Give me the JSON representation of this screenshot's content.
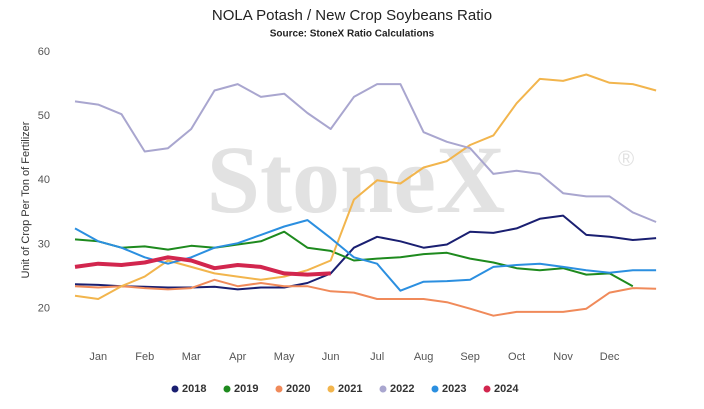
{
  "chart_data": {
    "type": "line",
    "title": "NOLA Potash / New Crop Soybeans Ratio",
    "subtitle": "Source: StoneX Ratio Calculations",
    "y_label": "Unit of Crop Per Ton of Fertilizer",
    "watermark": "StoneX",
    "watermark_mark": "®",
    "x": [
      0,
      0.5,
      1,
      1.5,
      2,
      2.5,
      3,
      3.5,
      4,
      4.5,
      5,
      5.5,
      6,
      6.5,
      7,
      7.5,
      8,
      8.5,
      9,
      9.5,
      10,
      10.5,
      11,
      11.5,
      12,
      12.5
    ],
    "xlim": [
      0,
      12.8
    ],
    "xticks": [
      {
        "value": 0.5,
        "label": "Jan"
      },
      {
        "value": 1.5,
        "label": "Feb"
      },
      {
        "value": 2.5,
        "label": "Mar"
      },
      {
        "value": 3.5,
        "label": "Apr"
      },
      {
        "value": 4.5,
        "label": "May"
      },
      {
        "value": 5.5,
        "label": "Jun"
      },
      {
        "value": 6.5,
        "label": "Jul"
      },
      {
        "value": 7.5,
        "label": "Aug"
      },
      {
        "value": 8.5,
        "label": "Sep"
      },
      {
        "value": 9.5,
        "label": "Oct"
      },
      {
        "value": 10.5,
        "label": "Nov"
      },
      {
        "value": 11.5,
        "label": "Dec"
      }
    ],
    "ylim": [
      13.4,
      60
    ],
    "yticks": [
      20,
      30,
      40,
      50,
      60
    ],
    "grid": false,
    "legend": "bottom",
    "series": [
      {
        "name": "2018",
        "color": "#1a1f71",
        "values": [
          23.8,
          23.7,
          23.5,
          23.4,
          23.3,
          23.3,
          23.4,
          23,
          23.3,
          23.3,
          24,
          25.5,
          29.5,
          31.2,
          30.5,
          29.5,
          30,
          32,
          31.8,
          32.5,
          34,
          34.5,
          31.5,
          31.2,
          30.7,
          31
        ]
      },
      {
        "name": "2019",
        "color": "#1e8a1e",
        "values": [
          30.8,
          30.5,
          29.5,
          29.7,
          29.2,
          29.8,
          29.5,
          30,
          30.5,
          32,
          29.5,
          29,
          27.5,
          27.8,
          28,
          28.5,
          28.7,
          27.8,
          27.2,
          26.3,
          26,
          26.3,
          25.3,
          25.5,
          23.5,
          null
        ]
      },
      {
        "name": "2020",
        "color": "#f08a5a",
        "values": [
          23.5,
          23.3,
          23.5,
          23.2,
          23,
          23.2,
          24.5,
          23.5,
          24,
          23.5,
          23.5,
          22.7,
          22.5,
          21.5,
          21.5,
          21.5,
          21,
          20,
          18.9,
          19.5,
          19.5,
          19.5,
          20,
          22.5,
          23.2,
          23.1
        ]
      },
      {
        "name": "2021",
        "color": "#f2b54d",
        "values": [
          22,
          21.5,
          23.5,
          25,
          27.5,
          26.5,
          25.5,
          25,
          24.5,
          25,
          26,
          27.5,
          37,
          40,
          39.5,
          42,
          43,
          45.5,
          47,
          52,
          55.8,
          55.5,
          56.5,
          55.2,
          55,
          54
        ]
      },
      {
        "name": "2022",
        "color": "#a9a6cf",
        "values": [
          52.3,
          51.8,
          50.3,
          44.5,
          45,
          48,
          54,
          55,
          53,
          53.5,
          50.5,
          48,
          53,
          55,
          55,
          47.5,
          46,
          45,
          41,
          41.5,
          41,
          38,
          37.5,
          37.5,
          35,
          33.5
        ]
      },
      {
        "name": "2023",
        "color": "#2b8fe0",
        "values": [
          32.5,
          30.5,
          29.5,
          28,
          27,
          28,
          29.5,
          30.2,
          31.5,
          32.8,
          33.8,
          31,
          28,
          27,
          22.8,
          24.2,
          24.3,
          24.5,
          26.5,
          26.8,
          27,
          26.5,
          26,
          25.6,
          26,
          26
        ]
      },
      {
        "name": "2024",
        "color": "#d2264e",
        "width": 4,
        "values": [
          26.5,
          27,
          26.8,
          27.2,
          28,
          27.5,
          26.3,
          26.8,
          26.5,
          25.5,
          25.3,
          25.5,
          null,
          null,
          null,
          null,
          null,
          null,
          null,
          null,
          null,
          null,
          null,
          null,
          null,
          null
        ]
      }
    ]
  }
}
